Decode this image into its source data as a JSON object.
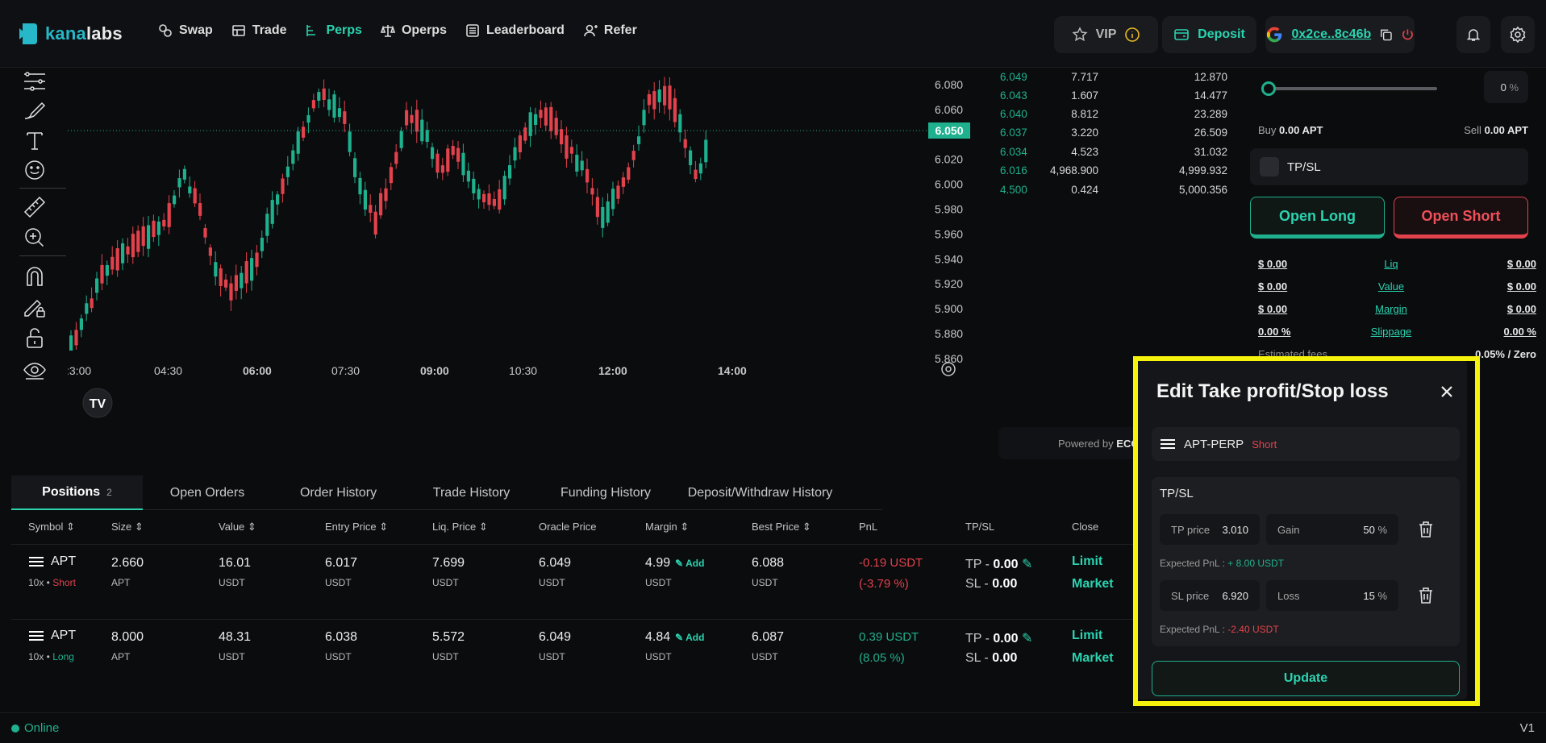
{
  "brand": {
    "name_part1": "kana",
    "name_part2": "labs"
  },
  "nav": [
    {
      "label": "Swap",
      "icon": "swap-icon"
    },
    {
      "label": "Trade",
      "icon": "trade-icon"
    },
    {
      "label": "Perps",
      "icon": "perps-icon",
      "active": true
    },
    {
      "label": "Operps",
      "icon": "operps-icon"
    },
    {
      "label": "Leaderboard",
      "icon": "leaderboard-icon"
    },
    {
      "label": "Refer",
      "icon": "refer-icon"
    }
  ],
  "header": {
    "vip_label": "VIP",
    "deposit_label": "Deposit",
    "wallet_address": "0x2ce..8c46b"
  },
  "colors": {
    "accent": "#2bd3b0",
    "up": "#1fb08d",
    "down": "#e2424c",
    "highlight": "#f5f20c"
  },
  "chart": {
    "current_price": "6.050",
    "price_ticks": [
      "6.080",
      "6.060",
      "6.040",
      "6.020",
      "6.000",
      "5.980",
      "5.960",
      "5.940",
      "5.920",
      "5.900",
      "5.880",
      "5.860"
    ],
    "time_ticks": [
      ":3:00",
      "04:30",
      "06:00",
      "07:30",
      "09:00",
      "10:30",
      "12:00",
      "14:00"
    ]
  },
  "orderbook": [
    {
      "price": "6.049",
      "size": "7.717",
      "total": "12.870"
    },
    {
      "price": "6.043",
      "size": "1.607",
      "total": "14.477"
    },
    {
      "price": "6.040",
      "size": "8.812",
      "total": "23.289"
    },
    {
      "price": "6.037",
      "size": "3.220",
      "total": "26.509"
    },
    {
      "price": "6.034",
      "size": "4.523",
      "total": "31.032"
    },
    {
      "price": "6.016",
      "size": "4,968.900",
      "total": "4,999.932"
    },
    {
      "price": "4.500",
      "size": "0.424",
      "total": "5,000.356"
    }
  ],
  "powered_by": "Powered by",
  "powered_brand": "ECO",
  "trade_panel": {
    "percent": "0",
    "percent_unit": "%",
    "buy_label": "Buy",
    "buy_value": "0.00 APT",
    "sell_label": "Sell",
    "sell_value": "0.00 APT",
    "tpsl_label": "TP/SL",
    "open_long": "Open Long",
    "open_short": "Open Short",
    "stats": [
      {
        "left": "$ 0.00",
        "label": "Liq",
        "right": "$ 0.00"
      },
      {
        "left": "$ 0.00",
        "label": "Value",
        "right": "$ 0.00"
      },
      {
        "left": "$ 0.00",
        "label": "Margin",
        "right": "$ 0.00"
      },
      {
        "left": "0.00 %",
        "label": "Slippage",
        "right": "0.00 %"
      }
    ],
    "fees_label": "Estimated fees",
    "fees_value": "0.05% / Zero"
  },
  "positions": {
    "tabs": [
      {
        "label": "Positions",
        "count": "2",
        "active": true
      },
      {
        "label": "Open Orders"
      },
      {
        "label": "Order History"
      },
      {
        "label": "Trade History"
      },
      {
        "label": "Funding History"
      },
      {
        "label": "Deposit/Withdraw History"
      }
    ],
    "columns": [
      "Symbol",
      "Size",
      "Value",
      "Entry Price",
      "Liq. Price",
      "Oracle Price",
      "Margin",
      "Best Price",
      "PnL",
      "TP/SL",
      "Close"
    ],
    "rows": [
      {
        "symbol": "APT",
        "leverage": "10x •",
        "side": "Short",
        "size": "2.660",
        "size_unit": "APT",
        "value": "16.01",
        "entry": "6.017",
        "liq": "7.699",
        "oracle": "6.049",
        "margin": "4.99",
        "add": "Add",
        "best": "6.088",
        "pnl": "-0.19 USDT",
        "pnl_pct": "(-3.79 %)",
        "tp": "TP - ",
        "tp_val": "0.00",
        "sl": "SL - ",
        "sl_val": "0.00",
        "limit": "Limit",
        "market": "Market",
        "unit": "USDT"
      },
      {
        "symbol": "APT",
        "leverage": "10x •",
        "side": "Long",
        "size": "8.000",
        "size_unit": "APT",
        "value": "48.31",
        "entry": "6.038",
        "liq": "5.572",
        "oracle": "6.049",
        "margin": "4.84",
        "add": "Add",
        "best": "6.087",
        "pnl": "0.39 USDT",
        "pnl_pct": "(8.05 %)",
        "tp": "TP - ",
        "tp_val": "0.00",
        "sl": "SL - ",
        "sl_val": "0.00",
        "limit": "Limit",
        "market": "Market",
        "unit": "USDT"
      }
    ]
  },
  "modal": {
    "title": "Edit Take profit/Stop loss",
    "pair": "APT-PERP",
    "side": "Short",
    "section_label": "TP/SL",
    "tp_label": "TP price",
    "tp_value": "3.010",
    "gain_label": "Gain",
    "gain_value": "50",
    "sl_label": "SL price",
    "sl_value": "6.920",
    "loss_label": "Loss",
    "loss_value": "15",
    "pct_unit": "%",
    "expected_label": "Expected PnL :",
    "tp_expected": "+ 8.00 USDT",
    "sl_expected": "-2.40 USDT",
    "update_label": "Update"
  },
  "footer": {
    "status": "Online",
    "version": "V1"
  }
}
